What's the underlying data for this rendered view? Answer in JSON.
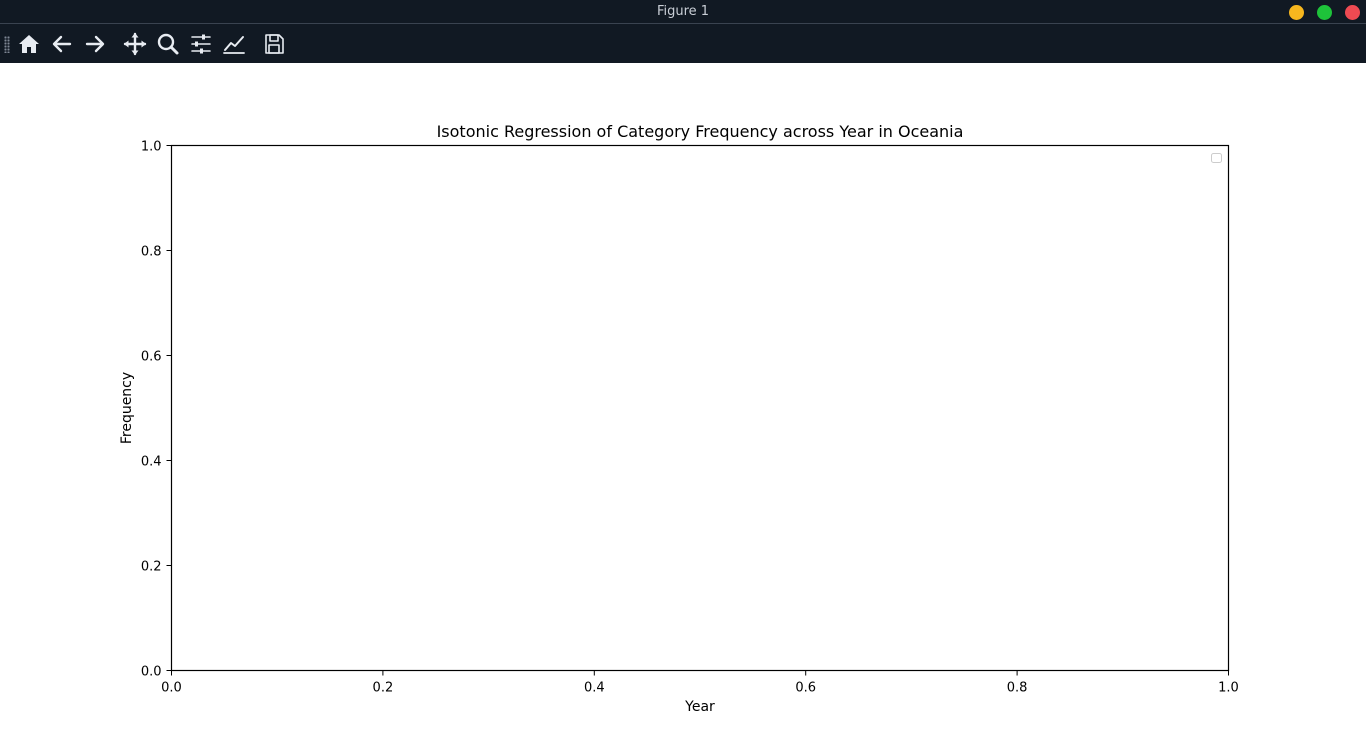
{
  "window": {
    "title": "Figure 1"
  },
  "toolbar": {
    "buttons": [
      {
        "name": "home",
        "icon": "home-icon"
      },
      {
        "name": "back",
        "icon": "arrow-left-icon"
      },
      {
        "name": "forward",
        "icon": "arrow-right-icon"
      },
      {
        "name": "pan",
        "icon": "move-icon"
      },
      {
        "name": "zoom",
        "icon": "magnifier-icon"
      },
      {
        "name": "configure-subplots",
        "icon": "sliders-icon"
      },
      {
        "name": "edit-axis",
        "icon": "line-chart-icon"
      },
      {
        "name": "save",
        "icon": "floppy-disk-icon"
      }
    ]
  },
  "colors": {
    "titlebar_bg": "#111923",
    "minimize": "#f7b71e",
    "maximize": "#1ec33a",
    "close": "#ee4a52"
  },
  "chart_data": {
    "type": "line",
    "title": "Isotonic Regression of Category Frequency across Year in Oceania",
    "xlabel": "Year",
    "ylabel": "Frequency",
    "xlim": [
      0.0,
      1.0
    ],
    "ylim": [
      0.0,
      1.0
    ],
    "xticks": [
      "0.0",
      "0.2",
      "0.4",
      "0.6",
      "0.8",
      "1.0"
    ],
    "yticks": [
      "0.0",
      "0.2",
      "0.4",
      "0.6",
      "0.8",
      "1.0"
    ],
    "series": [],
    "legend": "top-right",
    "grid": false
  }
}
